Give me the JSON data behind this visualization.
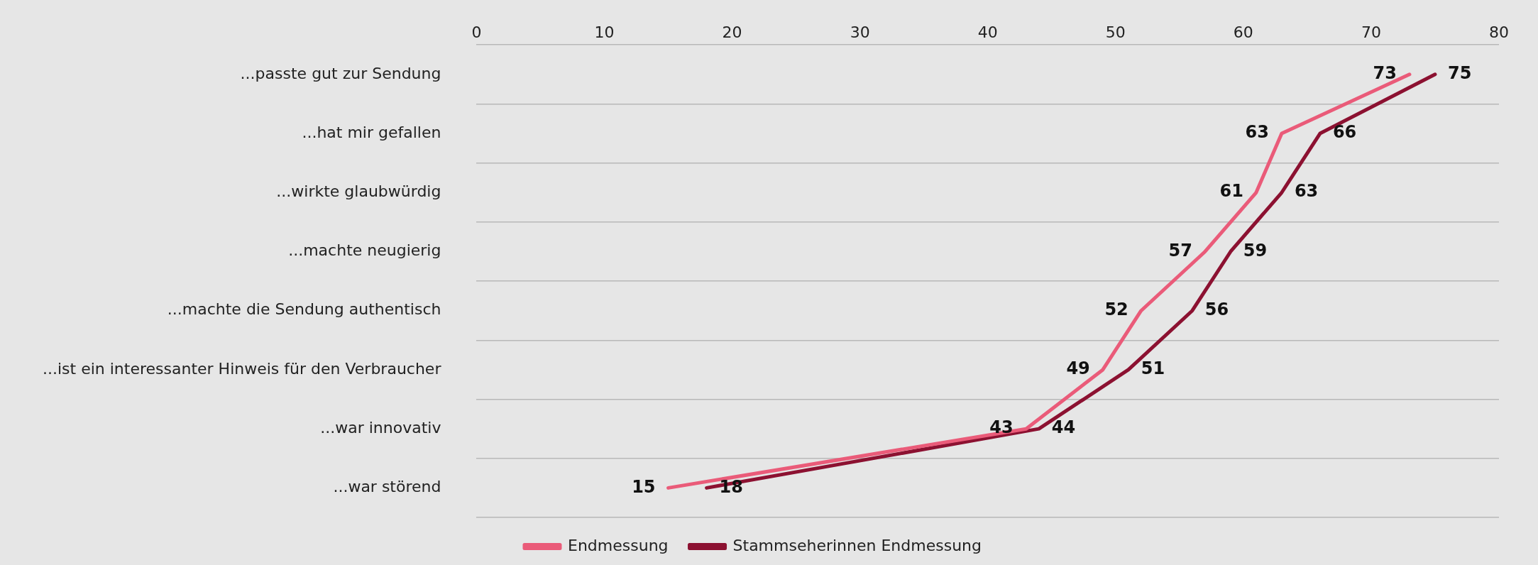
{
  "chart_data": {
    "type": "line",
    "orientation": "horizontal",
    "categories": [
      "...passte gut zur Sendung",
      "...hat mir gefallen",
      "...wirkte glaubwürdig",
      "...machte neugierig",
      "...machte die Sendung authentisch",
      "...ist ein interessanter Hinweis für den Verbraucher",
      "...war innovativ",
      "...war störend"
    ],
    "series": [
      {
        "name": "Endmessung",
        "color": "#ea5b79",
        "values": [
          73,
          63,
          61,
          57,
          52,
          49,
          43,
          15
        ]
      },
      {
        "name": "Stammseherinnen Endmessung",
        "color": "#8c1131",
        "values": [
          75,
          66,
          63,
          59,
          56,
          51,
          44,
          18
        ]
      }
    ],
    "xlim": [
      0,
      80
    ],
    "xticks": [
      0,
      10,
      20,
      30,
      40,
      50,
      60,
      70,
      80
    ],
    "grid": "y",
    "legend": "bottom",
    "data_labels": true,
    "marker": "none",
    "line_style": "solid"
  }
}
